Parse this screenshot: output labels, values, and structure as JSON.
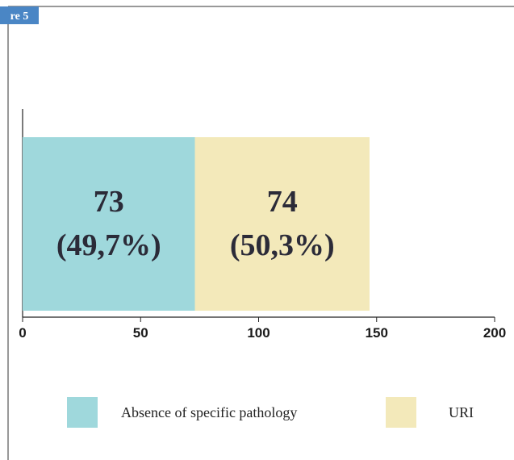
{
  "figure_label": "re 5",
  "chart_data": {
    "type": "stacked-hbar",
    "series": [
      {
        "name": "Absence of specific pathology",
        "color": "#9fd8dc",
        "values": [
          73
        ],
        "value_labels": [
          [
            "73",
            "(49,7%)"
          ]
        ]
      },
      {
        "name": "URI",
        "color": "#f3e9ba",
        "values": [
          74
        ],
        "value_labels": [
          [
            "74",
            "(50,3%)"
          ]
        ]
      }
    ],
    "xlim": [
      0,
      200
    ],
    "xticks": [
      0,
      50,
      100,
      150,
      200
    ]
  }
}
